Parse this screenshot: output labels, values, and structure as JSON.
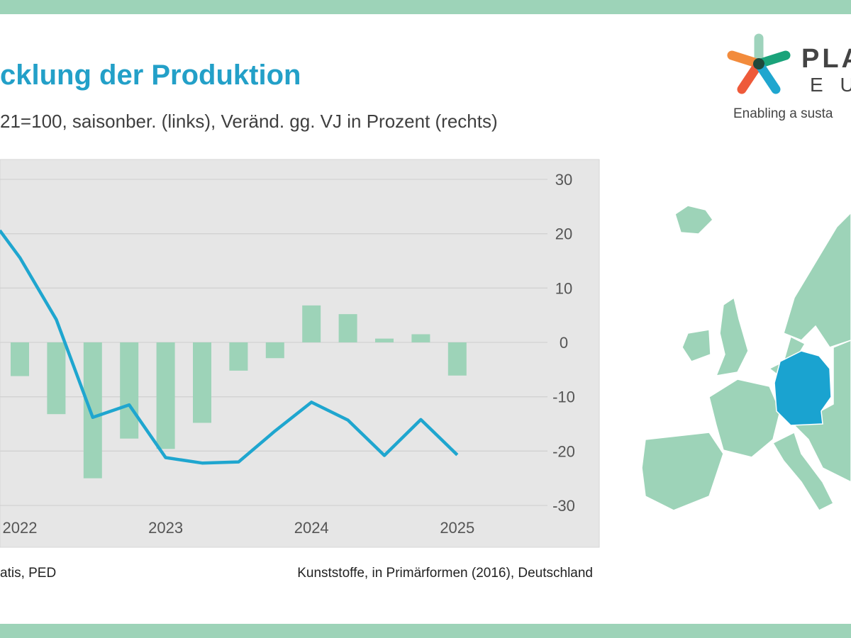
{
  "header": {
    "title": "cklung der Produktion",
    "subtitle": "21=100, saisonber. (links), Veränd. gg. VJ in Prozent (rechts)"
  },
  "footer": {
    "source": "atis, PED",
    "note": "Kunststoffe, in Primärformen (2016), Deutschland"
  },
  "logo": {
    "line1": "PLA",
    "line2": "E U",
    "tagline": "Enabling a susta"
  },
  "colors": {
    "band": "#9dd3b8",
    "bar": "#9dd3b8",
    "line": "#1fa6cf",
    "highlight_country": "#1aa3d0",
    "map": "#9dd3b8"
  },
  "chart_data": {
    "type": "bar+line",
    "right_axis": {
      "ylim": [
        -30,
        30
      ],
      "ticks": [
        "30",
        "20",
        "10",
        "0",
        "-10",
        "-20",
        "-30"
      ]
    },
    "x_tick_labels": [
      {
        "label": "2022",
        "index": 0
      },
      {
        "label": "2023",
        "index": 4
      },
      {
        "label": "2024",
        "index": 8
      },
      {
        "label": "2025",
        "index": 12
      }
    ],
    "series": [
      {
        "name": "Veränd. gg. VJ in Prozent (rechts)",
        "type": "bar",
        "values": [
          -6.2,
          -13.2,
          -25.0,
          -17.7,
          -19.6,
          -14.8,
          -5.2,
          -2.9,
          6.8,
          5.2,
          0.7,
          1.5,
          -6.1
        ]
      },
      {
        "name": "Index, saisonber. (links), plotted on right-axis scale",
        "type": "line",
        "x": [
          -0.55,
          0,
          1,
          2,
          3,
          4,
          5,
          6,
          7,
          8,
          9,
          10,
          11,
          12
        ],
        "values": [
          20.6,
          15.6,
          4.2,
          -13.8,
          -11.5,
          -21.2,
          -22.2,
          -22.0,
          -16.3,
          -11.0,
          -14.3,
          -20.8,
          -14.2,
          -20.7
        ]
      }
    ],
    "grid": true
  }
}
